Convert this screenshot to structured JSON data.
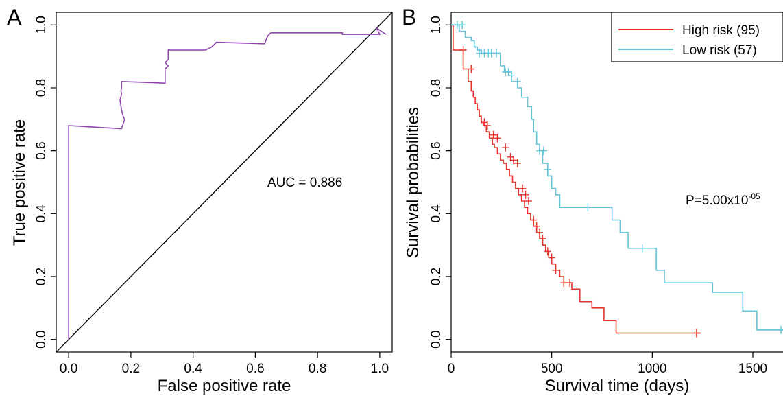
{
  "chart_data": [
    {
      "panel": "A",
      "type": "line",
      "xlabel": "False positive rate",
      "ylabel": "True positive rate",
      "xlim": [
        -0.04,
        1.04
      ],
      "ylim": [
        -0.04,
        1.04
      ],
      "xticks": [
        "0.0",
        "0.2",
        "0.4",
        "0.6",
        "0.8",
        "1.0"
      ],
      "yticks": [
        "0.0",
        "0.2",
        "0.4",
        "0.6",
        "0.8",
        "1.0"
      ],
      "annotation": "AUC = 0.886",
      "roc": {
        "color": "#8e44ad",
        "x": [
          0.0,
          0.0,
          0.17,
          0.18,
          0.175,
          0.17,
          0.165,
          0.17,
          0.168,
          0.17,
          0.17,
          0.31,
          0.31,
          0.32,
          0.31,
          0.32,
          0.32,
          0.44,
          0.46,
          0.475,
          0.63,
          0.64,
          0.65,
          0.88,
          0.88,
          1.0,
          0.99,
          1.02
        ],
        "y": [
          0.0,
          0.68,
          0.67,
          0.7,
          0.71,
          0.73,
          0.76,
          0.78,
          0.79,
          0.8,
          0.82,
          0.815,
          0.86,
          0.87,
          0.88,
          0.89,
          0.92,
          0.92,
          0.93,
          0.945,
          0.94,
          0.965,
          0.975,
          0.975,
          0.97,
          0.97,
          0.99,
          0.97
        ]
      },
      "diagonal": {
        "color": "#000000",
        "x": [
          -0.04,
          1.04
        ],
        "y": [
          -0.04,
          1.04
        ]
      }
    },
    {
      "panel": "B",
      "type": "line",
      "xlabel": "Survival time (days)",
      "ylabel": "Survival probabilities",
      "xlim": [
        0,
        1650
      ],
      "ylim": [
        -0.04,
        1.04
      ],
      "xticks": [
        "0",
        "500",
        "1000",
        "1500"
      ],
      "yticks": [
        "0.0",
        "0.2",
        "0.4",
        "0.6",
        "0.8",
        "1.0"
      ],
      "annotation": {
        "main": "P=5.00x10",
        "sup": "-05"
      },
      "legend": {
        "placement": "top-right"
      },
      "series": [
        {
          "name": "High risk (95)",
          "color": "#e8322c",
          "x": [
            0,
            10,
            60,
            85,
            100,
            110,
            120,
            130,
            140,
            150,
            160,
            175,
            190,
            205,
            215,
            230,
            245,
            260,
            275,
            290,
            305,
            320,
            335,
            350,
            365,
            380,
            395,
            410,
            425,
            440,
            455,
            470,
            485,
            500,
            520,
            540,
            560,
            600,
            640,
            700,
            760,
            820,
            1240
          ],
          "y": [
            1.0,
            0.92,
            0.86,
            0.82,
            0.79,
            0.77,
            0.75,
            0.73,
            0.71,
            0.69,
            0.68,
            0.66,
            0.64,
            0.62,
            0.61,
            0.59,
            0.57,
            0.56,
            0.54,
            0.52,
            0.5,
            0.48,
            0.46,
            0.44,
            0.42,
            0.4,
            0.38,
            0.36,
            0.34,
            0.32,
            0.3,
            0.28,
            0.26,
            0.24,
            0.22,
            0.2,
            0.18,
            0.16,
            0.12,
            0.1,
            0.06,
            0.02,
            0.02
          ],
          "censored": [
            {
              "x": 60,
              "y": 0.92
            },
            {
              "x": 100,
              "y": 0.86
            },
            {
              "x": 165,
              "y": 0.69
            },
            {
              "x": 180,
              "y": 0.68
            },
            {
              "x": 210,
              "y": 0.65
            },
            {
              "x": 230,
              "y": 0.64
            },
            {
              "x": 270,
              "y": 0.61
            },
            {
              "x": 295,
              "y": 0.58
            },
            {
              "x": 310,
              "y": 0.57
            },
            {
              "x": 330,
              "y": 0.56
            },
            {
              "x": 355,
              "y": 0.48
            },
            {
              "x": 370,
              "y": 0.46
            },
            {
              "x": 385,
              "y": 0.44
            },
            {
              "x": 410,
              "y": 0.38
            },
            {
              "x": 425,
              "y": 0.36
            },
            {
              "x": 440,
              "y": 0.34
            },
            {
              "x": 455,
              "y": 0.32
            },
            {
              "x": 480,
              "y": 0.28
            },
            {
              "x": 500,
              "y": 0.26
            },
            {
              "x": 520,
              "y": 0.22
            },
            {
              "x": 560,
              "y": 0.18
            },
            {
              "x": 590,
              "y": 0.18
            },
            {
              "x": 1220,
              "y": 0.02
            }
          ]
        },
        {
          "name": "Low risk (57)",
          "color": "#5fc4d6",
          "x": [
            0,
            40,
            70,
            100,
            115,
            130,
            150,
            245,
            265,
            300,
            330,
            350,
            380,
            400,
            410,
            425,
            440,
            455,
            480,
            500,
            520,
            540,
            600,
            650,
            700,
            750,
            800,
            840,
            880,
            920,
            980,
            1020,
            1060,
            1200,
            1300,
            1450,
            1480,
            1520,
            1650
          ],
          "y": [
            1.0,
            0.98,
            0.96,
            0.95,
            0.93,
            0.92,
            0.91,
            0.87,
            0.85,
            0.82,
            0.8,
            0.77,
            0.74,
            0.7,
            0.66,
            0.62,
            0.6,
            0.56,
            0.52,
            0.48,
            0.46,
            0.42,
            0.42,
            0.42,
            0.42,
            0.42,
            0.38,
            0.34,
            0.29,
            0.29,
            0.29,
            0.22,
            0.18,
            0.18,
            0.15,
            0.09,
            0.09,
            0.03,
            0.03
          ],
          "censored": [
            {
              "x": 30,
              "y": 1.0
            },
            {
              "x": 55,
              "y": 1.0
            },
            {
              "x": 140,
              "y": 0.91
            },
            {
              "x": 165,
              "y": 0.91
            },
            {
              "x": 185,
              "y": 0.91
            },
            {
              "x": 200,
              "y": 0.91
            },
            {
              "x": 225,
              "y": 0.91
            },
            {
              "x": 270,
              "y": 0.85
            },
            {
              "x": 285,
              "y": 0.85
            },
            {
              "x": 300,
              "y": 0.84
            },
            {
              "x": 330,
              "y": 0.82
            },
            {
              "x": 440,
              "y": 0.6
            },
            {
              "x": 460,
              "y": 0.6
            },
            {
              "x": 480,
              "y": 0.54
            },
            {
              "x": 680,
              "y": 0.42
            },
            {
              "x": 950,
              "y": 0.29
            },
            {
              "x": 1640,
              "y": 0.03
            }
          ]
        }
      ]
    }
  ]
}
